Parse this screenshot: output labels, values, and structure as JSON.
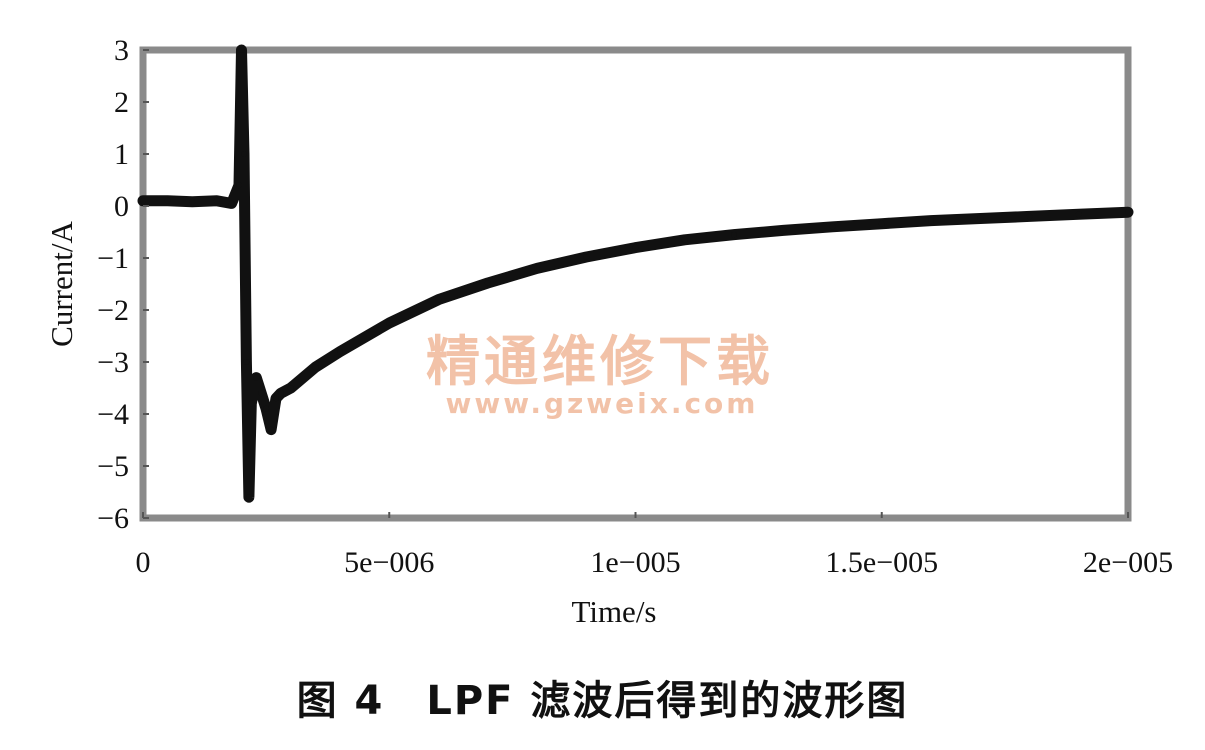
{
  "chart_data": {
    "type": "line",
    "xlabel": "Time/s",
    "ylabel": "Current/A",
    "xlim": [
      0,
      2e-05
    ],
    "ylim": [
      -6,
      3
    ],
    "x_ticks": [
      {
        "value": 0,
        "label": "0"
      },
      {
        "value": 5e-06,
        "label": "5e−006"
      },
      {
        "value": 1e-05,
        "label": "1e−005"
      },
      {
        "value": 1.5e-05,
        "label": "1.5e−005"
      },
      {
        "value": 2e-05,
        "label": "2e−005"
      }
    ],
    "y_ticks": [
      {
        "value": 3,
        "label": "3"
      },
      {
        "value": 2,
        "label": "2"
      },
      {
        "value": 1,
        "label": "1"
      },
      {
        "value": 0,
        "label": "0"
      },
      {
        "value": -1,
        "label": "−1"
      },
      {
        "value": -2,
        "label": "−2"
      },
      {
        "value": -3,
        "label": "−3"
      },
      {
        "value": -4,
        "label": "−4"
      },
      {
        "value": -5,
        "label": "−5"
      },
      {
        "value": -6,
        "label": "−6"
      }
    ],
    "grid": false,
    "series": [
      {
        "color": "#111111",
        "x": [
          0,
          5e-07,
          1e-06,
          1.5e-06,
          1.8e-06,
          1.95e-06,
          2e-06,
          2.05e-06,
          2.1e-06,
          2.15e-06,
          2.2e-06,
          2.3e-06,
          2.4e-06,
          2.5e-06,
          2.6e-06,
          2.7e-06,
          2.8e-06,
          3e-06,
          3.5e-06,
          4e-06,
          5e-06,
          6e-06,
          7e-06,
          8e-06,
          9e-06,
          1e-05,
          1.1e-05,
          1.2e-05,
          1.3e-05,
          1.4e-05,
          1.5e-05,
          1.6e-05,
          1.7e-05,
          1.8e-05,
          1.9e-05,
          2e-05
        ],
        "y": [
          0.1,
          0.1,
          0.08,
          0.1,
          0.05,
          0.4,
          3.0,
          1.0,
          -3.0,
          -5.6,
          -3.8,
          -3.3,
          -3.6,
          -3.9,
          -4.3,
          -3.7,
          -3.6,
          -3.5,
          -3.1,
          -2.8,
          -2.25,
          -1.8,
          -1.48,
          -1.2,
          -0.98,
          -0.8,
          -0.65,
          -0.55,
          -0.47,
          -0.4,
          -0.34,
          -0.28,
          -0.24,
          -0.2,
          -0.16,
          -0.12
        ]
      }
    ]
  },
  "watermark": {
    "line1": "精通维修下载",
    "line2": "www.gzweix.com",
    "color": "#f0b89a"
  },
  "caption": "图 4　LPF 滤波后得到的波形图"
}
